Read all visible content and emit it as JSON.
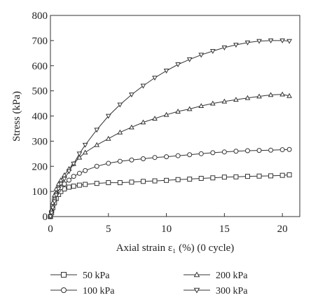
{
  "chart_data": {
    "type": "line",
    "title": "",
    "xlabel": "Axial strain ε₁ (%) (0 cycle)",
    "ylabel": "Stress (kPa)",
    "xlim": [
      0,
      21.5
    ],
    "ylim": [
      0,
      800
    ],
    "xticks": [
      0,
      5,
      10,
      15,
      20
    ],
    "yticks": [
      0,
      100,
      200,
      300,
      400,
      500,
      600,
      700,
      800
    ],
    "grid": false,
    "legend_position": "bottom",
    "series": [
      {
        "name": "50 kPa",
        "marker": "square",
        "x": [
          0,
          0.1,
          0.2,
          0.35,
          0.5,
          0.7,
          0.9,
          1.2,
          1.6,
          2,
          2.5,
          3,
          4,
          5,
          6,
          7,
          8,
          9,
          10,
          11,
          12,
          13,
          14,
          15,
          16,
          17,
          18,
          19,
          20,
          20.6
        ],
        "y": [
          0,
          15,
          35,
          55,
          72,
          88,
          100,
          110,
          117,
          121,
          125,
          128,
          132,
          135,
          135,
          137,
          140,
          142,
          144,
          147,
          149,
          152,
          154,
          157,
          158,
          160,
          161,
          162,
          164,
          166
        ]
      },
      {
        "name": "100 kPa",
        "marker": "circle",
        "x": [
          0,
          0.1,
          0.2,
          0.35,
          0.5,
          0.7,
          0.9,
          1.2,
          1.6,
          2,
          2.5,
          3,
          4,
          5,
          6,
          7,
          8,
          9,
          10,
          11,
          12,
          13,
          14,
          15,
          16,
          17,
          18,
          19,
          20,
          20.6
        ],
        "y": [
          0,
          20,
          45,
          70,
          90,
          105,
          115,
          130,
          145,
          160,
          172,
          183,
          200,
          212,
          220,
          225,
          230,
          235,
          238,
          242,
          246,
          250,
          254,
          257,
          260,
          262,
          263,
          264,
          266,
          267
        ]
      },
      {
        "name": "200 kPa",
        "marker": "triangle-up",
        "x": [
          0,
          0.1,
          0.2,
          0.35,
          0.5,
          0.7,
          0.9,
          1.2,
          1.6,
          2,
          2.5,
          3,
          4,
          5,
          6,
          7,
          8,
          9,
          10,
          11,
          12,
          13,
          14,
          15,
          16,
          17,
          18,
          19,
          20,
          20.6
        ],
        "y": [
          0,
          25,
          55,
          85,
          110,
          130,
          145,
          165,
          190,
          210,
          235,
          255,
          285,
          310,
          335,
          355,
          375,
          390,
          405,
          418,
          428,
          440,
          450,
          458,
          465,
          472,
          478,
          484,
          486,
          480
        ]
      },
      {
        "name": "300 kPa",
        "marker": "triangle-down",
        "x": [
          0,
          0.1,
          0.2,
          0.35,
          0.5,
          0.7,
          0.9,
          1.2,
          1.6,
          2,
          2.5,
          3,
          4,
          5,
          6,
          7,
          8,
          9,
          10,
          11,
          12,
          13,
          14,
          15,
          16,
          17,
          18,
          19,
          20,
          20.6
        ],
        "y": [
          0,
          15,
          35,
          60,
          85,
          110,
          130,
          150,
          180,
          210,
          250,
          285,
          345,
          400,
          445,
          485,
          520,
          552,
          580,
          605,
          625,
          643,
          658,
          672,
          683,
          692,
          698,
          700,
          700,
          698
        ]
      }
    ]
  }
}
